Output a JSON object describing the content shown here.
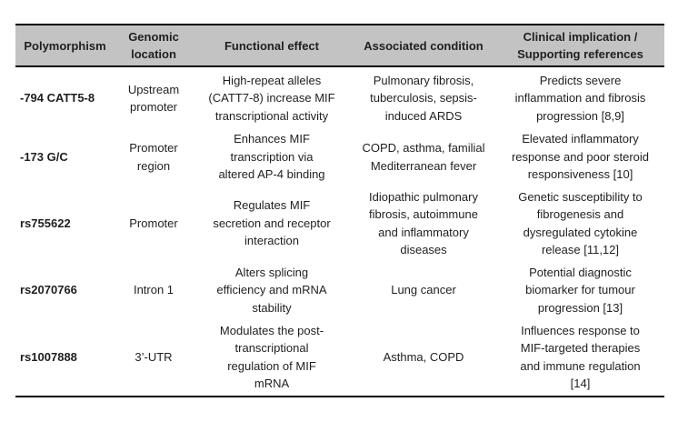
{
  "colors": {
    "header_bg": "#c3c3c3",
    "border": "#000000",
    "text": "#1f1f1f"
  },
  "table": {
    "columns": [
      "Polymorphism",
      "Genomic\nlocation",
      "Functional effect",
      "Associated condition",
      "Clinical implication /\nSupporting references"
    ],
    "rows": [
      {
        "polymorphism": "-794 CATT5-8",
        "genomic_location": "Upstream\npromoter",
        "functional_effect": "High-repeat alleles\n(CATT7-8) increase MIF\ntranscriptional activity",
        "associated_condition": "Pulmonary fibrosis,\ntuberculosis, sepsis-\ninduced ARDS",
        "clinical_implication": "Predicts severe\ninflammation and fibrosis\nprogression [8,9]"
      },
      {
        "polymorphism": "-173 G/C",
        "genomic_location": "Promoter\nregion",
        "functional_effect": "Enhances MIF\ntranscription via\naltered AP-4 binding",
        "associated_condition": "COPD, asthma, familial\nMediterranean fever",
        "clinical_implication": "Elevated inflammatory\nresponse and poor steroid\nresponsiveness [10]"
      },
      {
        "polymorphism": "rs755622",
        "genomic_location": "Promoter",
        "functional_effect": "Regulates MIF\nsecretion and receptor\ninteraction",
        "associated_condition": "Idiopathic pulmonary\nfibrosis, autoimmune\nand inflammatory\ndiseases",
        "clinical_implication": "Genetic susceptibility to\nfibrogenesis and\ndysregulated cytokine\nrelease [11,12]"
      },
      {
        "polymorphism": "rs2070766",
        "genomic_location": "Intron 1",
        "functional_effect": "Alters splicing\nefficiency and mRNA\nstability",
        "associated_condition": "Lung cancer",
        "clinical_implication": "Potential diagnostic\nbiomarker for tumour\nprogression [13]"
      },
      {
        "polymorphism": "rs1007888",
        "genomic_location": "3’-UTR",
        "functional_effect": "Modulates the post-\ntranscriptional\nregulation of MIF\nmRNA",
        "associated_condition": "Asthma, COPD",
        "clinical_implication": "Influences response to\nMIF-targeted therapies\nand immune regulation\n[14]"
      }
    ]
  }
}
